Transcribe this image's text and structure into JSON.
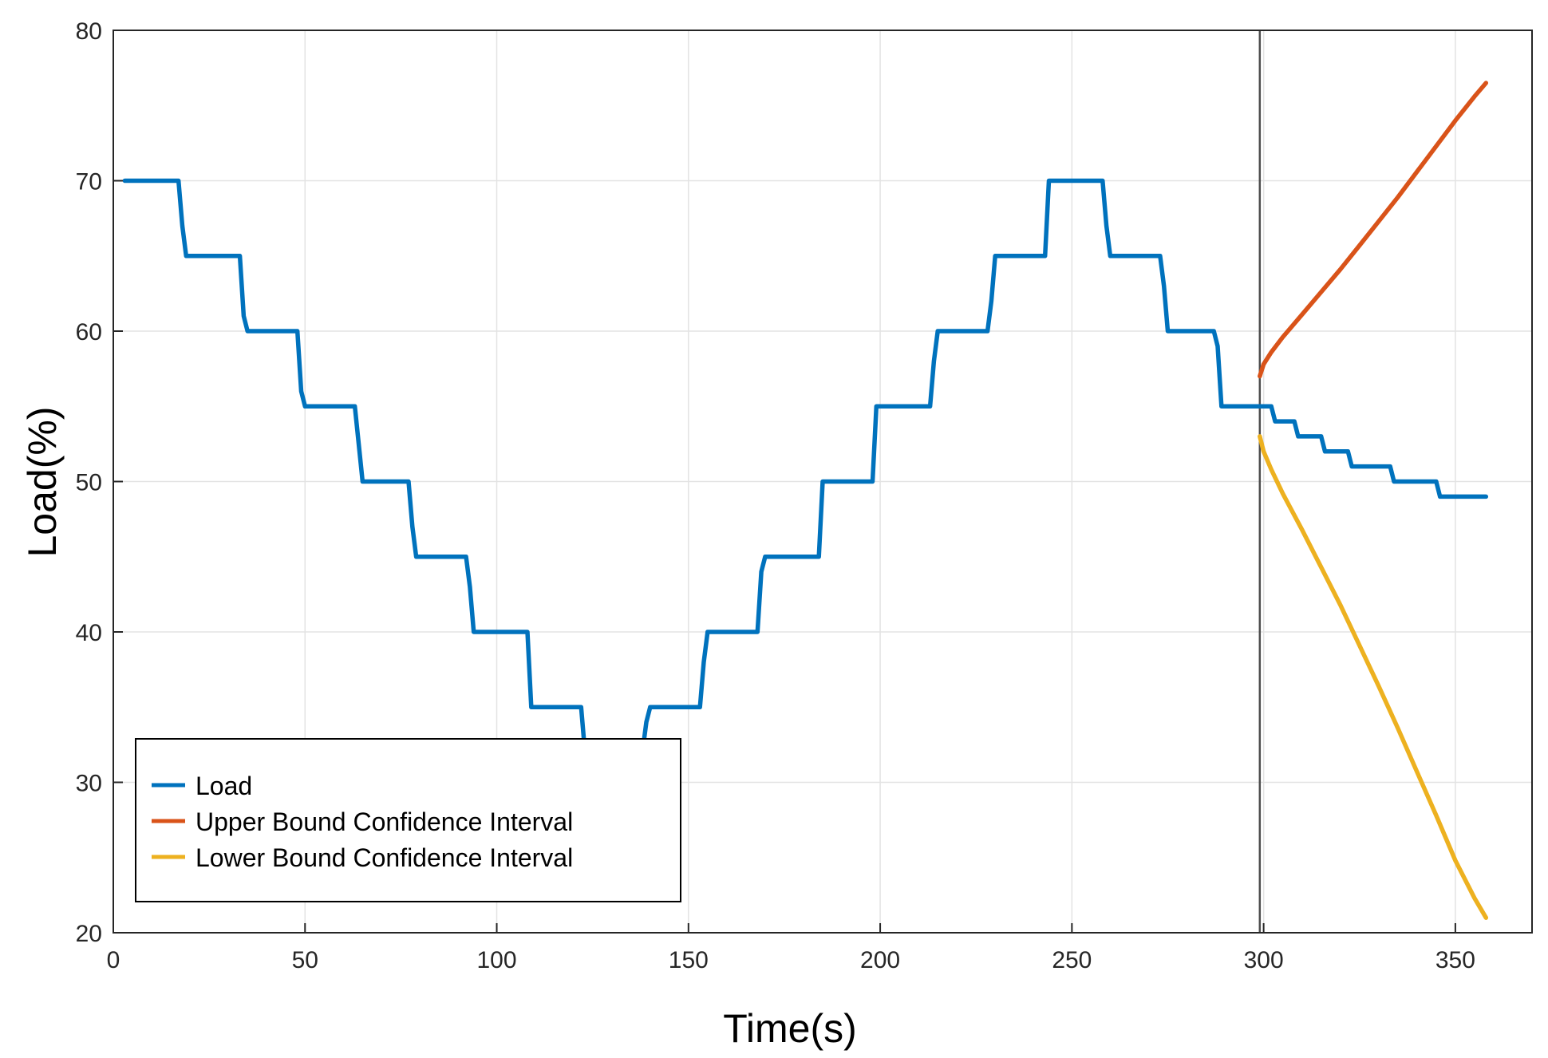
{
  "chart_data": {
    "type": "line",
    "title": "",
    "xlabel": "Time(s)",
    "ylabel": "Load(%)",
    "xlim": [
      0,
      370
    ],
    "ylim": [
      20,
      80
    ],
    "xticks": [
      0,
      50,
      100,
      150,
      200,
      250,
      300,
      350
    ],
    "yticks": [
      20,
      30,
      40,
      50,
      60,
      70,
      80
    ],
    "grid": true,
    "legend_position": "bottom-left",
    "vertical_line_x": 299,
    "series": [
      {
        "name": "Load",
        "color": "#0072BD",
        "x": [
          3,
          17,
          18,
          19,
          33,
          34,
          35,
          48,
          49,
          50,
          63,
          65,
          77,
          78,
          79,
          92,
          93,
          94,
          108,
          109,
          110,
          122,
          123,
          124,
          125,
          137,
          138,
          139,
          140,
          153,
          154,
          155,
          168,
          169,
          170,
          184,
          185,
          186,
          198,
          199,
          200,
          213,
          214,
          215,
          228,
          229,
          230,
          243,
          244,
          245,
          258,
          259,
          260,
          273,
          274,
          275,
          287,
          288,
          289,
          299,
          302,
          303,
          308,
          309,
          315,
          316,
          322,
          323,
          333,
          334,
          345,
          346,
          358
        ],
        "y": [
          70,
          70,
          67,
          65,
          65,
          61,
          60,
          60,
          56,
          55,
          55,
          50,
          50,
          47,
          45,
          45,
          43,
          40,
          40,
          35,
          35,
          35,
          32,
          30,
          30,
          30,
          32,
          34,
          35,
          35,
          38,
          40,
          40,
          44,
          45,
          45,
          50,
          50,
          50,
          55,
          55,
          55,
          58,
          60,
          60,
          62,
          65,
          65,
          70,
          70,
          70,
          67,
          65,
          65,
          63,
          60,
          60,
          59,
          55,
          55,
          55,
          54,
          54,
          53,
          53,
          52,
          52,
          51,
          51,
          50,
          50,
          49,
          49
        ]
      },
      {
        "name": "Upper Bound Confidence Interval",
        "color": "#D95319",
        "x": [
          299,
          300,
          302,
          305,
          310,
          315,
          320,
          325,
          330,
          335,
          340,
          345,
          350,
          355,
          358
        ],
        "y": [
          57,
          57.8,
          58.6,
          59.6,
          61.1,
          62.6,
          64.1,
          65.7,
          67.3,
          68.9,
          70.6,
          72.3,
          74,
          75.6,
          76.5
        ]
      },
      {
        "name": "Lower Bound Confidence Interval",
        "color": "#EDB120",
        "x": [
          299,
          300,
          302,
          305,
          310,
          315,
          320,
          325,
          330,
          335,
          340,
          345,
          350,
          355,
          358
        ],
        "y": [
          53,
          52,
          50.8,
          49.2,
          46.8,
          44.3,
          41.8,
          39.1,
          36.4,
          33.6,
          30.7,
          27.8,
          24.8,
          22.3,
          21
        ]
      }
    ]
  }
}
